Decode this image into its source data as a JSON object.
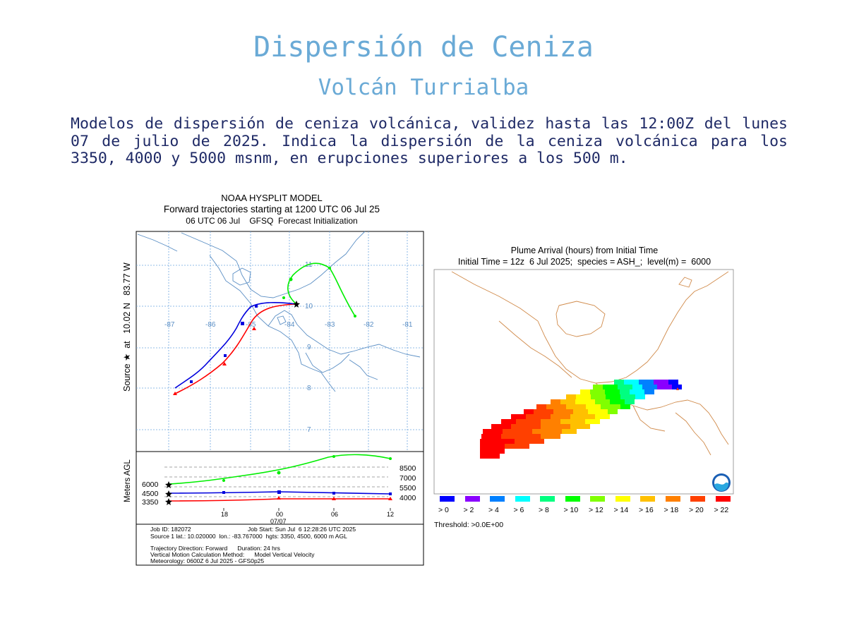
{
  "page": {
    "title": "Dispersión de Ceniza",
    "subtitle": "Volcán Turrialba",
    "description": "Modelos de dispersión de ceniza volcánica, validez hasta las 12:00Z del lunes 07 de julio de 2025. Indica la dispersión de la ceniza volcánica para los 3350, 4000 y 5000 msnm, en erupciones superiores a los 500 m."
  },
  "trajectory": {
    "header1": "NOAA HYSPLIT MODEL",
    "header2": "Forward trajectories starting at 1200 UTC 06 Jul 25",
    "header3": "06 UTC 06 Jul    GFSQ  Forecast Initialization",
    "side_label": "Source ★  at   10.02 N   83.77 W",
    "lon_labels": [
      "-87",
      "-86",
      "-85",
      "-84",
      "-83",
      "-82",
      "-81"
    ],
    "lat_labels": [
      "11",
      "10",
      "9",
      "8",
      "7"
    ],
    "vertical_axis_label": "Meters AGL",
    "height_labels_left": [
      "6000",
      "4500",
      "3350"
    ],
    "height_labels_right": [
      "8500",
      "7000",
      "5500",
      "4000"
    ],
    "time_labels": [
      "18",
      "00",
      "06",
      "12"
    ],
    "date_label": "07/07",
    "colors": {
      "red": "#ff0000",
      "blue": "#0000dd",
      "green": "#00ee00"
    },
    "info": {
      "job_id": "Job ID: 182072",
      "job_start": "Job Start: Sun Jul  6 12:28:26 UTC 2025",
      "source": "Source 1 lat.: 10.020000  lon.: -83.767000  hgts: 3350, 4500, 6000 m AGL",
      "direction": "Trajectory Direction: Forward      Duration: 24 hrs",
      "vertical": "Vertical Motion Calculation Method:      Model Vertical Velocity",
      "meteorology": "Meteorology: 0600Z 6 Jul 2025 - GFS0p25"
    }
  },
  "plume": {
    "header1": "Plume Arrival (hours) from Initial Time",
    "header2": "Initial Time = 12z  6 Jul 2025;  species = ASH_;  level(m) =  6000",
    "threshold": "Threshold: >0.0E+00",
    "legend": [
      {
        "label": "> 0",
        "color": "#0000ff"
      },
      {
        "label": "> 2",
        "color": "#8a00ff"
      },
      {
        "label": "> 4",
        "color": "#0080ff"
      },
      {
        "label": "> 6",
        "color": "#00ffff"
      },
      {
        "label": "> 8",
        "color": "#00ff80"
      },
      {
        "label": "> 10",
        "color": "#00ff00"
      },
      {
        "label": "> 12",
        "color": "#80ff00"
      },
      {
        "label": "> 14",
        "color": "#ffff00"
      },
      {
        "label": "> 16",
        "color": "#ffc000"
      },
      {
        "label": "> 18",
        "color": "#ff8000"
      },
      {
        "label": "> 20",
        "color": "#ff4000"
      },
      {
        "label": "> 22",
        "color": "#ff0000"
      }
    ]
  }
}
